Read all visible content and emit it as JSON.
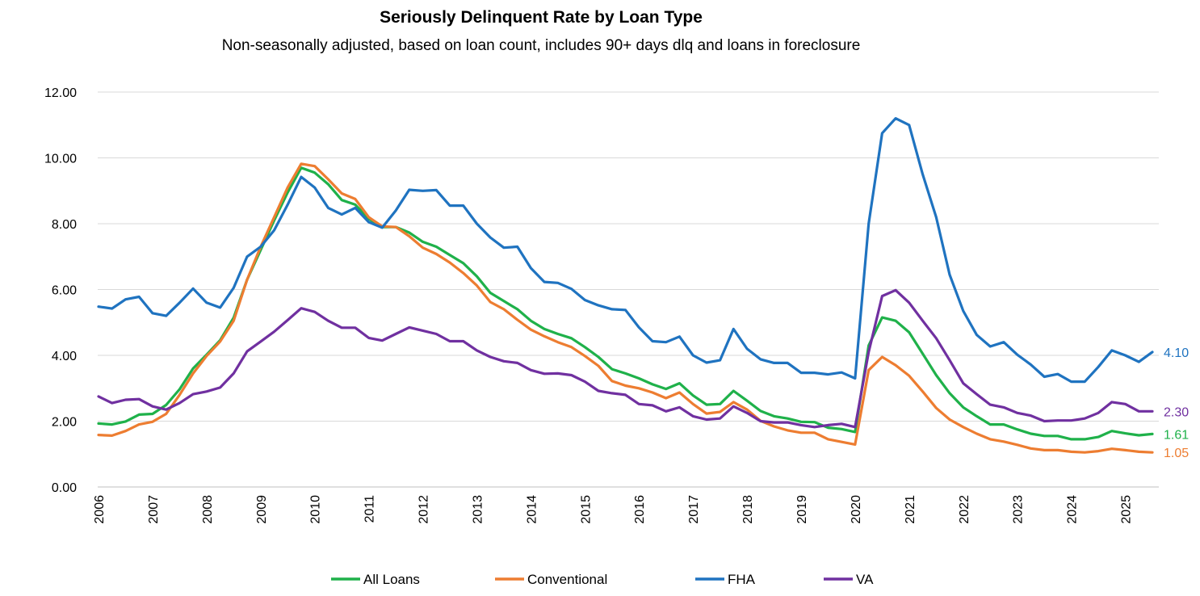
{
  "chart_data": {
    "type": "line",
    "title": "Seriously Delinquent Rate by Loan Type",
    "subtitle": "Non-seasonally adjusted, based on loan count, includes 90+ days dlq and loans in foreclosure",
    "xlabel": "",
    "ylabel": "",
    "ylim": [
      0,
      12
    ],
    "yticks": [
      "0.00",
      "2.00",
      "4.00",
      "6.00",
      "8.00",
      "10.00",
      "12.00"
    ],
    "xticks": [
      "2006",
      "2007",
      "2008",
      "2009",
      "2010",
      "2011",
      "2012",
      "2013",
      "2014",
      "2015",
      "2016",
      "2017",
      "2018",
      "2019",
      "2020",
      "2021",
      "2022",
      "2023",
      "2024",
      "2025"
    ],
    "x_start": 2006.0,
    "x_step": 0.25,
    "grid": true,
    "legend_position": "bottom",
    "series": [
      {
        "name": "All Loans",
        "color": "#1FB14A",
        "end_label": "1.61",
        "values": [
          1.93,
          1.9,
          1.99,
          2.2,
          2.22,
          2.49,
          2.97,
          3.6,
          4.02,
          4.46,
          5.14,
          6.3,
          7.2,
          8.1,
          8.95,
          9.7,
          9.55,
          9.2,
          8.72,
          8.58,
          8.15,
          7.9,
          7.9,
          7.73,
          7.45,
          7.3,
          7.05,
          6.8,
          6.4,
          5.9,
          5.65,
          5.4,
          5.05,
          4.8,
          4.65,
          4.52,
          4.25,
          3.95,
          3.58,
          3.45,
          3.3,
          3.12,
          2.98,
          3.15,
          2.78,
          2.5,
          2.52,
          2.92,
          2.62,
          2.31,
          2.15,
          2.08,
          1.98,
          1.97,
          1.8,
          1.76,
          1.67,
          4.3,
          5.15,
          5.05,
          4.7,
          4.05,
          3.4,
          2.85,
          2.42,
          2.15,
          1.9,
          1.9,
          1.75,
          1.62,
          1.55,
          1.55,
          1.45,
          1.45,
          1.52,
          1.7,
          1.63,
          1.57,
          1.61
        ]
      },
      {
        "name": "Conventional",
        "color": "#ED7D31",
        "end_label": "1.05",
        "values": [
          1.58,
          1.56,
          1.7,
          1.9,
          1.98,
          2.22,
          2.8,
          3.45,
          3.98,
          4.42,
          5.05,
          6.3,
          7.3,
          8.2,
          9.1,
          9.82,
          9.75,
          9.35,
          8.92,
          8.75,
          8.2,
          7.92,
          7.9,
          7.62,
          7.27,
          7.08,
          6.82,
          6.5,
          6.12,
          5.62,
          5.4,
          5.08,
          4.78,
          4.58,
          4.4,
          4.25,
          3.98,
          3.68,
          3.22,
          3.08,
          3.0,
          2.87,
          2.7,
          2.87,
          2.52,
          2.23,
          2.28,
          2.58,
          2.35,
          2.01,
          1.84,
          1.72,
          1.65,
          1.65,
          1.45,
          1.37,
          1.29,
          3.55,
          3.95,
          3.7,
          3.38,
          2.9,
          2.4,
          2.05,
          1.82,
          1.62,
          1.45,
          1.38,
          1.28,
          1.17,
          1.12,
          1.12,
          1.07,
          1.05,
          1.09,
          1.16,
          1.12,
          1.07,
          1.05
        ]
      },
      {
        "name": "FHA",
        "color": "#1F73C0",
        "end_label": "4.10",
        "values": [
          5.48,
          5.42,
          5.7,
          5.78,
          5.28,
          5.2,
          5.6,
          6.03,
          5.6,
          5.45,
          6.05,
          7.0,
          7.3,
          7.8,
          8.58,
          9.42,
          9.1,
          8.48,
          8.28,
          8.48,
          8.05,
          7.88,
          8.4,
          9.03,
          9.0,
          9.02,
          8.55,
          8.55,
          8.0,
          7.58,
          7.27,
          7.3,
          6.65,
          6.23,
          6.2,
          6.02,
          5.68,
          5.52,
          5.4,
          5.38,
          4.85,
          4.43,
          4.4,
          4.57,
          4.0,
          3.78,
          3.85,
          4.8,
          4.2,
          3.88,
          3.77,
          3.77,
          3.47,
          3.47,
          3.42,
          3.48,
          3.3,
          8.0,
          10.75,
          11.2,
          11.0,
          9.5,
          8.2,
          6.45,
          5.35,
          4.62,
          4.27,
          4.4,
          4.02,
          3.72,
          3.35,
          3.43,
          3.2,
          3.2,
          3.65,
          4.15,
          4.0,
          3.8,
          4.1
        ]
      },
      {
        "name": "VA",
        "color": "#7030A0",
        "end_label": "2.30",
        "values": [
          2.75,
          2.55,
          2.65,
          2.67,
          2.45,
          2.35,
          2.55,
          2.82,
          2.9,
          3.02,
          3.45,
          4.12,
          4.42,
          4.72,
          5.07,
          5.43,
          5.32,
          5.05,
          4.84,
          4.84,
          4.53,
          4.45,
          4.65,
          4.85,
          4.75,
          4.65,
          4.43,
          4.43,
          4.15,
          3.95,
          3.82,
          3.77,
          3.55,
          3.44,
          3.45,
          3.4,
          3.2,
          2.92,
          2.85,
          2.8,
          2.52,
          2.48,
          2.3,
          2.42,
          2.15,
          2.05,
          2.08,
          2.45,
          2.25,
          2.0,
          1.96,
          1.96,
          1.88,
          1.82,
          1.88,
          1.92,
          1.82,
          4.1,
          5.8,
          5.98,
          5.6,
          5.05,
          4.52,
          3.85,
          3.15,
          2.82,
          2.5,
          2.42,
          2.25,
          2.17,
          2.0,
          2.02,
          2.02,
          2.08,
          2.25,
          2.58,
          2.52,
          2.3,
          2.3
        ]
      }
    ]
  }
}
